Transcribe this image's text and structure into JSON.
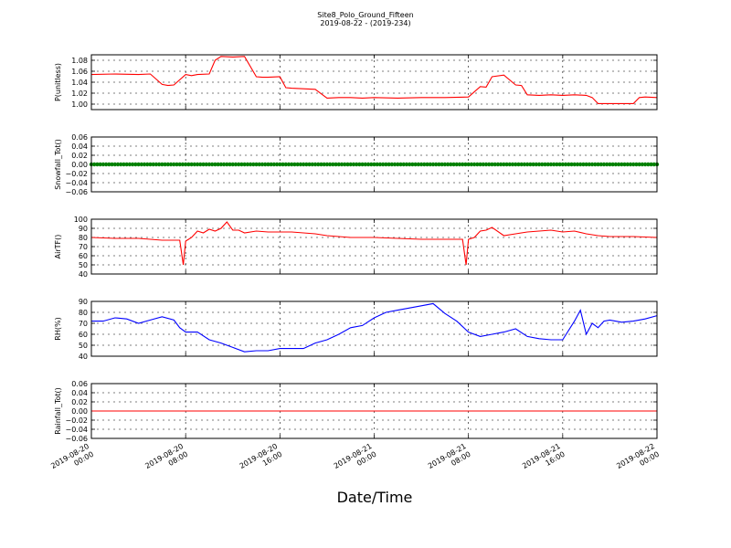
{
  "header": {
    "title": "Site8_Polo_Ground_Fifteen",
    "subtitle": "2019-08-22 - (2019-234)"
  },
  "xaxis_title": "Date/Time",
  "x_ticks": [
    [
      "2019-08-20",
      "00:00"
    ],
    [
      "2019-08-20",
      "08:00"
    ],
    [
      "2019-08-20",
      "16:00"
    ],
    [
      "2019-08-21",
      "00:00"
    ],
    [
      "2019-08-21",
      "08:00"
    ],
    [
      "2019-08-21",
      "16:00"
    ],
    [
      "2019-08-22",
      "00:00"
    ]
  ],
  "colors": {
    "red": "#ff0000",
    "green": "#008000",
    "blue": "#0000ff"
  },
  "chart_data": [
    {
      "type": "line",
      "ylabel": "P(unitless)",
      "ylim": [
        0.99,
        1.09
      ],
      "yticks": [
        "1.00",
        "1.02",
        "1.04",
        "1.06",
        "1.08"
      ],
      "ytick_values": [
        1.0,
        1.02,
        1.04,
        1.06,
        1.08
      ],
      "xlim": [
        0,
        48
      ],
      "grid": true,
      "series": [
        {
          "color": "#ff0000",
          "x": [
            0,
            2,
            4,
            5,
            6,
            6.5,
            7,
            8,
            8.5,
            9,
            10,
            10.5,
            11,
            12,
            13,
            14,
            14.5,
            15,
            16,
            16.5,
            17,
            18,
            19,
            20,
            21,
            22,
            23,
            24,
            26,
            28,
            30,
            32,
            33,
            33.5,
            34,
            35,
            36,
            36.5,
            37,
            38,
            39,
            40,
            41,
            42,
            42.5,
            43,
            44,
            46,
            46.5,
            47,
            48
          ],
          "y": [
            1.054,
            1.055,
            1.054,
            1.055,
            1.036,
            1.034,
            1.035,
            1.054,
            1.052,
            1.054,
            1.055,
            1.08,
            1.087,
            1.086,
            1.087,
            1.05,
            1.049,
            1.049,
            1.05,
            1.03,
            1.029,
            1.028,
            1.027,
            1.011,
            1.012,
            1.012,
            1.011,
            1.012,
            1.011,
            1.012,
            1.012,
            1.013,
            1.032,
            1.031,
            1.05,
            1.053,
            1.035,
            1.034,
            1.017,
            1.016,
            1.017,
            1.016,
            1.017,
            1.016,
            1.012,
            1.001,
            1.001,
            1.001,
            1.012,
            1.013,
            1.012
          ]
        }
      ]
    },
    {
      "type": "scatter",
      "ylabel": "Snowfall_Tot()",
      "ylim": [
        -0.06,
        0.06
      ],
      "yticks": [
        "0.06",
        "0.04",
        "0.02",
        "0.00",
        "−0.02",
        "−0.04",
        "−0.06"
      ],
      "ytick_values": [
        0.06,
        0.04,
        0.02,
        0.0,
        -0.02,
        -0.04,
        -0.06
      ],
      "xlim": [
        0,
        48
      ],
      "grid": true,
      "series": [
        {
          "color": "#008000",
          "constant": 0.0,
          "x_step": 0.25
        }
      ]
    },
    {
      "type": "line",
      "ylabel": "AirTF()",
      "ylim": [
        40,
        100
      ],
      "yticks": [
        "100",
        "90",
        "80",
        "70",
        "60",
        "50",
        "40"
      ],
      "ytick_values": [
        100,
        90,
        80,
        70,
        60,
        50,
        40
      ],
      "xlim": [
        0,
        48
      ],
      "grid": true,
      "series": [
        {
          "color": "#ff0000",
          "x": [
            0,
            2,
            4,
            6,
            7.5,
            7.8,
            8,
            8.5,
            9,
            9.5,
            10,
            10.5,
            11,
            11.5,
            12,
            12.5,
            13,
            14,
            15,
            16,
            17,
            18,
            19,
            20,
            22,
            24,
            26,
            28,
            31.5,
            31.8,
            32,
            32.5,
            33,
            33.5,
            34,
            35,
            36,
            37,
            38,
            39,
            40,
            41,
            42,
            43,
            44,
            46,
            48
          ],
          "y": [
            80,
            79,
            79,
            77,
            77,
            50,
            76,
            80,
            87,
            85,
            89,
            87,
            90,
            97,
            88,
            88,
            85,
            87,
            86,
            86,
            86,
            85,
            84,
            82,
            80,
            80,
            79,
            78,
            78,
            50,
            78,
            80,
            87,
            88,
            91,
            82,
            84,
            86,
            87,
            88,
            86,
            87,
            84,
            82,
            81,
            81,
            80
          ]
        }
      ]
    },
    {
      "type": "line",
      "ylabel": "RH(%)",
      "ylim": [
        40,
        90
      ],
      "yticks": [
        "90",
        "80",
        "70",
        "60",
        "50",
        "40"
      ],
      "ytick_values": [
        90,
        80,
        70,
        60,
        50,
        40
      ],
      "xlim": [
        0,
        48
      ],
      "grid": true,
      "series": [
        {
          "color": "#0000ff",
          "x": [
            0,
            1,
            2,
            3,
            4,
            5,
            6,
            7,
            7.5,
            8,
            9,
            10,
            11,
            12,
            13,
            14,
            15,
            16,
            17,
            18,
            19,
            20,
            21,
            22,
            23,
            24,
            25,
            26,
            27,
            28,
            29,
            30,
            31,
            32,
            33,
            34,
            35,
            36,
            37,
            38,
            39,
            40,
            41,
            41.5,
            42,
            42.5,
            43,
            43.5,
            44,
            45,
            46,
            47,
            48
          ],
          "y": [
            72,
            72,
            75,
            74,
            70,
            73,
            76,
            73,
            66,
            62,
            62,
            55,
            52,
            48,
            44,
            45,
            45,
            47,
            47,
            47,
            52,
            55,
            60,
            66,
            68,
            75,
            80,
            82,
            84,
            86,
            88,
            79,
            72,
            62,
            58,
            60,
            62,
            65,
            58,
            56,
            55,
            55,
            72,
            82,
            60,
            70,
            66,
            72,
            73,
            71,
            72,
            74,
            77
          ]
        }
      ]
    },
    {
      "type": "line",
      "ylabel": "Rainfall_Tot()",
      "ylim": [
        -0.06,
        0.06
      ],
      "yticks": [
        "0.06",
        "0.04",
        "0.02",
        "0.00",
        "−0.02",
        "−0.04",
        "−0.06"
      ],
      "ytick_values": [
        0.06,
        0.04,
        0.02,
        0.0,
        -0.02,
        -0.04,
        -0.06
      ],
      "xlim": [
        0,
        48
      ],
      "grid": true,
      "series": [
        {
          "color": "#ff0000",
          "x": [
            0,
            48
          ],
          "y": [
            0.0,
            0.0
          ]
        }
      ]
    }
  ]
}
